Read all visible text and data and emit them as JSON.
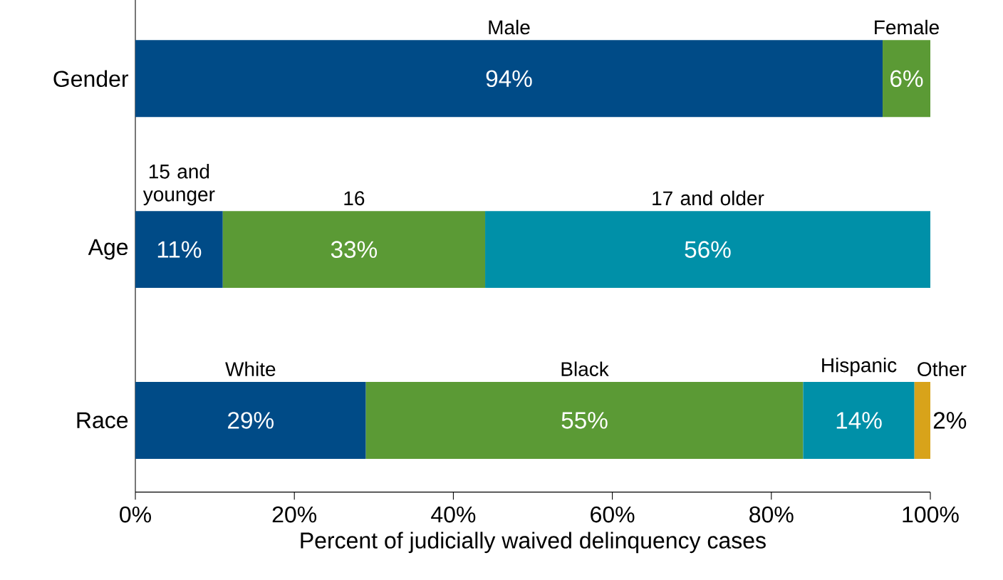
{
  "chart_data": {
    "type": "bar",
    "orientation": "horizontal",
    "stacked": true,
    "xlabel": "Percent of judicially waived delinquency cases",
    "categories": [
      "Gender",
      "Age",
      "Race"
    ],
    "series": [
      {
        "color": "#004b87",
        "values": [
          94,
          11,
          29
        ],
        "value_labels": [
          "94%",
          "11%",
          "29%"
        ]
      },
      {
        "color": "#5b9a35",
        "values": [
          6,
          33,
          55
        ],
        "value_labels": [
          "6%",
          "33%",
          "55%"
        ]
      },
      {
        "color": "#0090a8",
        "values": [
          null,
          56,
          14
        ],
        "value_labels": [
          null,
          "56%",
          "14%"
        ]
      },
      {
        "color": "#d8a31a",
        "values": [
          null,
          null,
          2
        ],
        "value_labels": [
          null,
          null,
          "2%"
        ]
      }
    ],
    "annotations": [
      "Male",
      "Female",
      "15 and younger",
      "16",
      "17 and older",
      "White",
      "Black",
      "Hispanic",
      "Other"
    ],
    "xlim": [
      0,
      100
    ],
    "xticks": [
      {
        "value": 0,
        "label": "0%"
      },
      {
        "value": 20,
        "label": "20%"
      },
      {
        "value": 40,
        "label": "40%"
      },
      {
        "value": 60,
        "label": "60%"
      },
      {
        "value": 80,
        "label": "80%"
      },
      {
        "value": 100,
        "label": "100%"
      }
    ],
    "grid": false
  }
}
